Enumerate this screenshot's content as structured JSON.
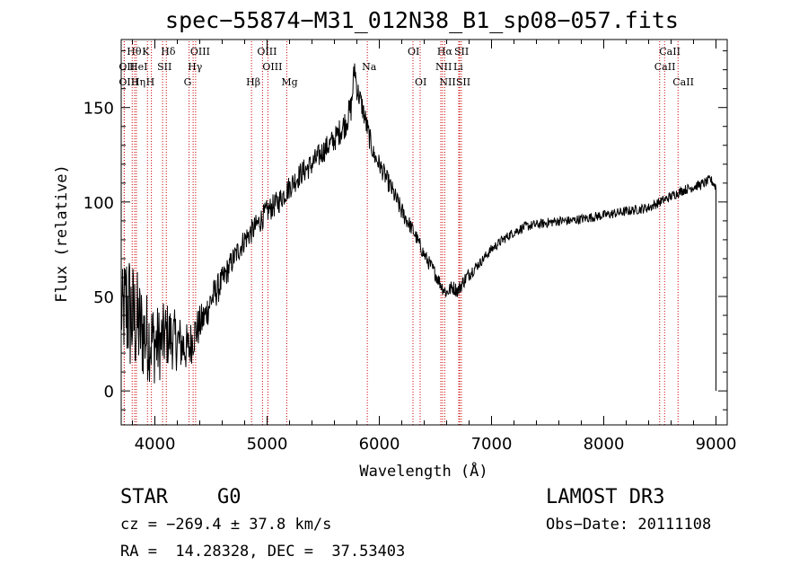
{
  "chart_data": {
    "type": "line",
    "title": "spec−55874−M31_012N38_B1_sp08−057.fits",
    "xlabel": "Wavelength (Å)",
    "ylabel": "Flux (relative)",
    "xlim": [
      3700,
      9100
    ],
    "ylim": [
      -18,
      186
    ],
    "xticks": [
      4000,
      5000,
      6000,
      7000,
      8000,
      9000
    ],
    "xtick_labels": [
      "4000",
      "5000",
      "6000",
      "7000",
      "8000",
      "9000"
    ],
    "yticks": [
      0,
      50,
      100,
      150
    ],
    "ytick_labels": [
      "0",
      "50",
      "100",
      "150"
    ],
    "grid": false,
    "series": [
      {
        "name": "spectrum",
        "color": "#000000",
        "x": [
          3700,
          3750,
          3800,
          3850,
          3900,
          3950,
          4000,
          4050,
          4100,
          4150,
          4200,
          4250,
          4300,
          4350,
          4400,
          4450,
          4500,
          4600,
          4700,
          4800,
          4900,
          5000,
          5100,
          5200,
          5300,
          5400,
          5500,
          5600,
          5700,
          5750,
          5780,
          5800,
          5850,
          5900,
          5950,
          6000,
          6100,
          6200,
          6300,
          6400,
          6500,
          6560,
          6600,
          6650,
          6700,
          6750,
          6800,
          6900,
          7000,
          7100,
          7200,
          7300,
          7400,
          7500,
          7600,
          7700,
          7800,
          7900,
          8000,
          8100,
          8200,
          8300,
          8400,
          8500,
          8600,
          8700,
          8800,
          8900,
          8950,
          9000
        ],
        "y": [
          40,
          45,
          38,
          35,
          30,
          28,
          25,
          25,
          30,
          28,
          26,
          24,
          22,
          30,
          35,
          40,
          48,
          58,
          70,
          80,
          87,
          95,
          100,
          108,
          115,
          120,
          127,
          133,
          142,
          150,
          172,
          160,
          150,
          137,
          125,
          120,
          108,
          95,
          85,
          72,
          62,
          55,
          52,
          55,
          53,
          58,
          62,
          68,
          75,
          80,
          84,
          87,
          88,
          89,
          90,
          90,
          91,
          92,
          93,
          94,
          95,
          96,
          97,
          100,
          103,
          106,
          108,
          110,
          112,
          108
        ],
        "noise": [
          15,
          28,
          25,
          22,
          20,
          18,
          17,
          15,
          14,
          13,
          12,
          11,
          10,
          9,
          8,
          7,
          7,
          6,
          5,
          5,
          5,
          5,
          5,
          5,
          5,
          5,
          5,
          5,
          6,
          6,
          5,
          5,
          5,
          5,
          4,
          4,
          4,
          4,
          3,
          3,
          3,
          3,
          3,
          3,
          3,
          3,
          3,
          2,
          2,
          2,
          2,
          2,
          2,
          2,
          2,
          2,
          2,
          2,
          2,
          2,
          2,
          2,
          2,
          2,
          2,
          2,
          2,
          2,
          2,
          2
        ]
      }
    ],
    "lines": [
      {
        "name": "Hθ",
        "wavelength": 3798,
        "row": 0
      },
      {
        "name": "OII",
        "wavelength": 3727,
        "row": 1
      },
      {
        "name": "OIII",
        "wavelength": 3727,
        "row": 2
      },
      {
        "name": "HeI",
        "wavelength": 3820,
        "row": 1
      },
      {
        "name": "Hη",
        "wavelength": 3835,
        "row": 2
      },
      {
        "name": "K",
        "wavelength": 3934,
        "row": 0
      },
      {
        "name": "H",
        "wavelength": 3969,
        "row": 2
      },
      {
        "name": "SII",
        "wavelength": 4069,
        "row": 1
      },
      {
        "name": "Hδ",
        "wavelength": 4102,
        "row": 0
      },
      {
        "name": "OIII",
        "wavelength": 4363,
        "row": 0
      },
      {
        "name": "Hγ",
        "wavelength": 4341,
        "row": 1
      },
      {
        "name": "G",
        "wavelength": 4305,
        "row": 2
      },
      {
        "name": "Hβ",
        "wavelength": 4861,
        "row": 2
      },
      {
        "name": "OIII",
        "wavelength": 4959,
        "row": 0
      },
      {
        "name": "OIII",
        "wavelength": 5007,
        "row": 1
      },
      {
        "name": "Mg",
        "wavelength": 5175,
        "row": 2
      },
      {
        "name": "Na",
        "wavelength": 5893,
        "row": 1
      },
      {
        "name": "OI",
        "wavelength": 6300,
        "row": 0
      },
      {
        "name": "OI",
        "wavelength": 6364,
        "row": 2
      },
      {
        "name": "Hα",
        "wavelength": 6563,
        "row": 0
      },
      {
        "name": "NII",
        "wavelength": 6548,
        "row": 1
      },
      {
        "name": "NII",
        "wavelength": 6583,
        "row": 2
      },
      {
        "name": "SII",
        "wavelength": 6716,
        "row": 0
      },
      {
        "name": "Li",
        "wavelength": 6708,
        "row": 1
      },
      {
        "name": "SII",
        "wavelength": 6731,
        "row": 2
      },
      {
        "name": "CaII",
        "wavelength": 8542,
        "row": 0
      },
      {
        "name": "CaII",
        "wavelength": 8498,
        "row": 1
      },
      {
        "name": "CaII",
        "wavelength": 8662,
        "row": 2
      }
    ],
    "line_marker_color": "#cc0000"
  },
  "info": {
    "class": "STAR",
    "subclass": "G0",
    "survey": "LAMOST DR3",
    "cz": "cz = −269.4 ± 37.8 km/s",
    "obs_date": "Obs−Date: 20111108",
    "radec": "RA =  14.28328, DEC =  37.53403"
  }
}
